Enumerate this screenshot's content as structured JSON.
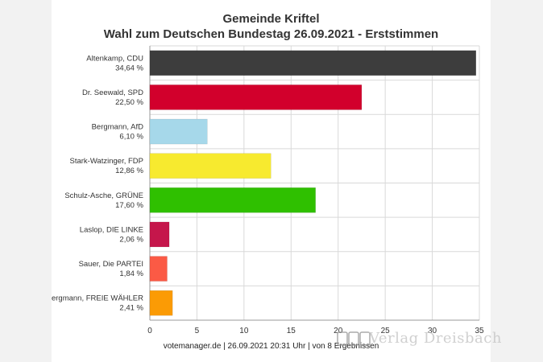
{
  "chart_data": {
    "type": "bar",
    "orientation": "horizontal",
    "title": "Gemeinde Kriftel",
    "subtitle": "Wahl zum Deutschen Bundestag 26.09.2021  - Erststimmen",
    "categories": [
      "Altenkamp, CDU",
      "Dr. Seewald, SPD",
      "Bergmann, AfD",
      "Stark-Watzinger, FDP",
      "Schulz-Asche, GRÜNE",
      "Laslop, DIE LINKE",
      "Sauer, Die PARTEI",
      "Bergmann, FREIE WÄHLER"
    ],
    "value_labels": [
      "34,64 %",
      "22,50 %",
      "6,10 %",
      "12,86 %",
      "17,60 %",
      "2,06 %",
      "1,84 %",
      "2,41 %"
    ],
    "values": [
      34.64,
      22.5,
      6.1,
      12.86,
      17.6,
      2.06,
      1.84,
      2.41
    ],
    "colors": [
      "#3d3d3d",
      "#d2002c",
      "#a6d8ea",
      "#f7ea2f",
      "#2fc000",
      "#c5164b",
      "#fb5a45",
      "#fb9b05"
    ],
    "xlim": [
      0,
      35
    ],
    "xticks": [
      "0",
      "5",
      "10",
      "15",
      "20",
      "25",
      "30",
      "35"
    ],
    "grid": true
  },
  "footer": "votemanager.de | 26.09.2021 20:31 Uhr | von 8 Ergebnissen",
  "watermark": "Verlag Dreisbach"
}
